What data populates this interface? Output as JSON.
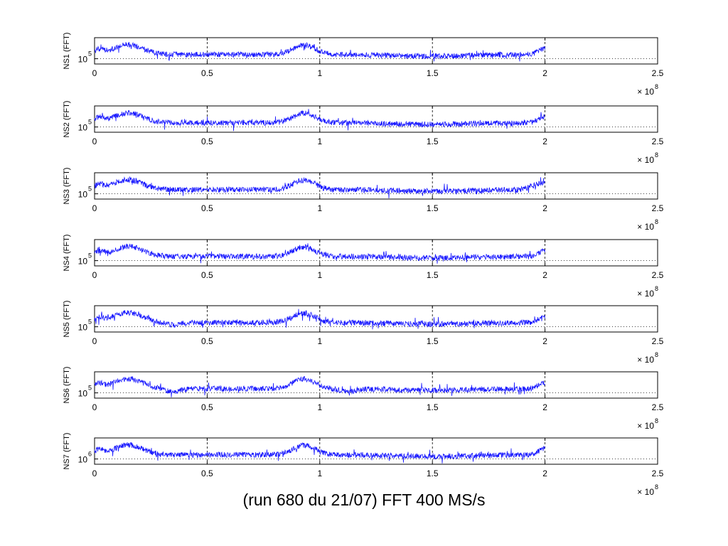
{
  "caption": "(run 680 du 21/07) FFT 400 MS/s",
  "colors": {
    "series": "#1a1aff",
    "axes": "#000000",
    "grid": "#000000"
  },
  "chart_data": [
    {
      "type": "line",
      "ylabel": "NS1 (FFT)",
      "ytick": "10",
      "ytick_exp": "5",
      "xticks": [
        "0",
        "0.5",
        "1",
        "1.5",
        "2",
        "2.5"
      ],
      "x_multiplier": "× 10",
      "x_multiplier_exp": "8",
      "xlim": [
        0,
        2.5
      ],
      "x_data_end": 2.0,
      "grid": "vertical dashed at ticks, horizontal dotted at y-tick"
    },
    {
      "type": "line",
      "ylabel": "NS2 (FFT)",
      "ytick": "10",
      "ytick_exp": "5",
      "xticks": [
        "0",
        "0.5",
        "1",
        "1.5",
        "2",
        "2.5"
      ],
      "x_multiplier": "× 10",
      "x_multiplier_exp": "8",
      "xlim": [
        0,
        2.5
      ],
      "x_data_end": 2.0,
      "grid": "vertical dashed at ticks, horizontal dotted at y-tick"
    },
    {
      "type": "line",
      "ylabel": "NS3 (FFT)",
      "ytick": "10",
      "ytick_exp": "5",
      "xticks": [
        "0",
        "0.5",
        "1",
        "1.5",
        "2",
        "2.5"
      ],
      "x_multiplier": "× 10",
      "x_multiplier_exp": "8",
      "xlim": [
        0,
        2.5
      ],
      "x_data_end": 2.0,
      "grid": "vertical dashed at ticks, horizontal dotted at y-tick"
    },
    {
      "type": "line",
      "ylabel": "NS4 (FFT)",
      "ytick": "10",
      "ytick_exp": "5",
      "xticks": [
        "0",
        "0.5",
        "1",
        "1.5",
        "2",
        "2.5"
      ],
      "x_multiplier": "× 10",
      "x_multiplier_exp": "8",
      "xlim": [
        0,
        2.5
      ],
      "x_data_end": 2.0,
      "grid": "vertical dashed at ticks, horizontal dotted at y-tick"
    },
    {
      "type": "line",
      "ylabel": "NS5 (FFT)",
      "ytick": "10",
      "ytick_exp": "5",
      "xticks": [
        "0",
        "0.5",
        "1",
        "1.5",
        "2",
        "2.5"
      ],
      "x_multiplier": "× 10",
      "x_multiplier_exp": "8",
      "xlim": [
        0,
        2.5
      ],
      "x_data_end": 2.0,
      "grid": "vertical dashed at ticks, horizontal dotted at y-tick"
    },
    {
      "type": "line",
      "ylabel": "NS6 (FFT)",
      "ytick": "10",
      "ytick_exp": "5",
      "xticks": [
        "0",
        "0.5",
        "1",
        "1.5",
        "2",
        "2.5"
      ],
      "x_multiplier": "× 10",
      "x_multiplier_exp": "8",
      "xlim": [
        0,
        2.5
      ],
      "x_data_end": 2.0,
      "grid": "vertical dashed at ticks, horizontal dotted at y-tick"
    },
    {
      "type": "line",
      "ylabel": "NS7 (FFT)",
      "ytick": "10",
      "ytick_exp": "6",
      "xticks": [
        "0",
        "0.5",
        "1",
        "1.5",
        "2",
        "2.5"
      ],
      "x_multiplier": "× 10",
      "x_multiplier_exp": "8",
      "xlim": [
        0,
        2.5
      ],
      "x_data_end": 2.0,
      "grid": "vertical dashed at ticks, horizontal dotted at y-tick"
    }
  ]
}
